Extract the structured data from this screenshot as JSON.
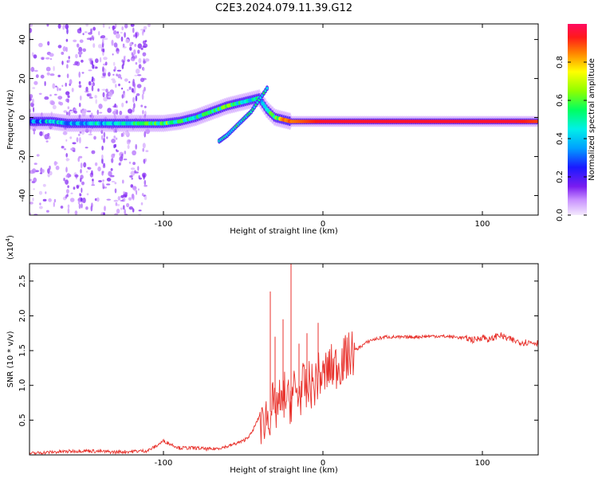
{
  "title": "C2E3.2024.079.11.39.G12",
  "chart_data": [
    {
      "type": "heatmap",
      "xlabel": "Height of straight line (km)",
      "ylabel": "Frequency (Hz)",
      "xlim": [
        -184,
        135
      ],
      "ylim": [
        -50,
        48
      ],
      "x_ticks": [
        -100,
        0,
        100
      ],
      "x_tick_labels": [
        "-100",
        "0",
        "100"
      ],
      "y_ticks": [
        -40,
        -20,
        0,
        20,
        40
      ],
      "y_tick_labels": [
        "-40",
        "-20",
        "0",
        "20",
        "40"
      ],
      "colorbar": {
        "label": "Normalized spectral amplitude",
        "range": [
          0,
          1
        ],
        "ticks": [
          0.0,
          0.2,
          0.4,
          0.6,
          0.8
        ],
        "tick_labels": [
          "0.0",
          "0.2",
          "0.4",
          "0.6",
          "0.8"
        ]
      },
      "grid": false,
      "main_trace": {
        "x": [
          -184,
          -170,
          -160,
          -150,
          -140,
          -130,
          -120,
          -110,
          -100,
          -90,
          -80,
          -70,
          -60,
          -50,
          -45,
          -40,
          -35,
          -30,
          -25,
          -20,
          -10,
          0,
          20,
          50,
          80,
          100,
          120,
          135
        ],
        "y": [
          -2,
          -2,
          -3,
          -3,
          -3,
          -3,
          -3,
          -3,
          -3,
          -2,
          0,
          3,
          6,
          8,
          9,
          10,
          4,
          0,
          -1,
          -2,
          -2,
          -2,
          -2,
          -2,
          -2,
          -2,
          -2,
          -2
        ],
        "amplitude": [
          0.3,
          0.4,
          0.35,
          0.4,
          0.4,
          0.45,
          0.5,
          0.5,
          0.55,
          0.55,
          0.5,
          0.5,
          0.55,
          0.5,
          0.4,
          0.45,
          0.5,
          0.6,
          0.75,
          0.85,
          0.9,
          0.95,
          0.95,
          0.95,
          0.95,
          0.95,
          0.95,
          0.9
        ]
      },
      "secondary_trace": {
        "x": [
          -65,
          -60,
          -55,
          -50,
          -45,
          -40,
          -35
        ],
        "y": [
          -12,
          -9,
          -5,
          -1,
          3,
          9,
          15
        ]
      }
    },
    {
      "type": "line",
      "xlabel": "Height of straight line (km)",
      "ylabel": "SNR (10 * v/v)",
      "y_multiplier": "(x10",
      "y_multiplier_exponent": "4",
      "y_multiplier_close": ")",
      "xlim": [
        -184,
        135
      ],
      "ylim": [
        0,
        27500
      ],
      "x_ticks": [
        -100,
        0,
        100
      ],
      "x_tick_labels": [
        "-100",
        "0",
        "100"
      ],
      "y_ticks": [
        5000,
        10000,
        15000,
        20000,
        25000
      ],
      "y_tick_labels": [
        "0.5",
        "1.0",
        "1.5",
        "2.0",
        "2.5"
      ],
      "grid": false,
      "series": [
        {
          "color": "#e8322c",
          "x": [
            -184,
            -170,
            -150,
            -130,
            -110,
            -105,
            -100,
            -95,
            -90,
            -80,
            -70,
            -60,
            -50,
            -45,
            -40,
            -38,
            -36,
            -34,
            -32,
            -30,
            -28,
            -26,
            -24,
            -22,
            -20,
            -18,
            -16,
            -14,
            -12,
            -10,
            -8,
            -6,
            -4,
            -2,
            0,
            2,
            5,
            10,
            15,
            20,
            25,
            30,
            40,
            50,
            60,
            70,
            80,
            90,
            95,
            100,
            105,
            110,
            115,
            120,
            125,
            130,
            135
          ],
          "y": [
            200,
            400,
            600,
            400,
            600,
            1200,
            2000,
            1500,
            1000,
            1000,
            800,
            1200,
            2000,
            3000,
            5500,
            4000,
            6000,
            5000,
            7500,
            6000,
            8000,
            6500,
            9000,
            7500,
            8000,
            9500,
            8500,
            9000,
            10000,
            9000,
            10500,
            9500,
            11000,
            11500,
            11000,
            12000,
            12500,
            13000,
            14000,
            15000,
            15800,
            16500,
            17000,
            16900,
            17000,
            17100,
            17000,
            16800,
            16500,
            17000,
            16500,
            17300,
            16800,
            16400,
            16200,
            16200,
            16100
          ]
        }
      ],
      "spikes": [
        {
          "x": -33,
          "y": 23500
        },
        {
          "x": -20,
          "y": 27500
        },
        {
          "x": -25,
          "y": 19500
        },
        {
          "x": -30,
          "y": 17000
        },
        {
          "x": -3,
          "y": 19000
        },
        {
          "x": -10,
          "y": 17500
        },
        {
          "x": -15,
          "y": 16000
        }
      ]
    }
  ]
}
